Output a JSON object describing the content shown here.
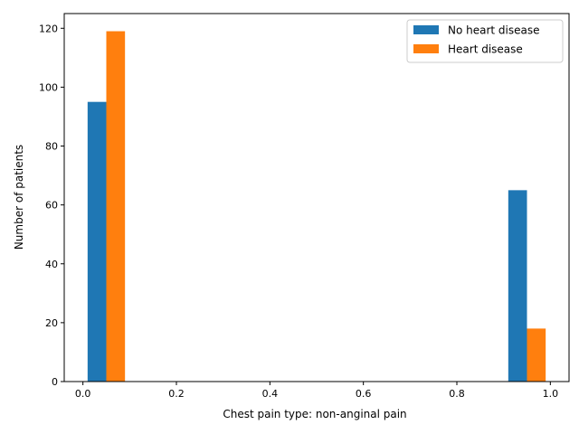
{
  "chart_data": {
    "type": "bar",
    "title": "",
    "xlabel": "Chest pain type: non-anginal pain",
    "ylabel": "Number of patients",
    "xlim": [
      -0.04,
      1.04
    ],
    "ylim": [
      0,
      125
    ],
    "xticks": [
      0.0,
      0.2,
      0.4,
      0.6,
      0.8,
      1.0
    ],
    "xtick_labels": [
      "0.0",
      "0.2",
      "0.4",
      "0.6",
      "0.8",
      "1.0"
    ],
    "yticks": [
      0,
      20,
      40,
      60,
      80,
      100,
      120
    ],
    "ytick_labels": [
      "0",
      "20",
      "40",
      "60",
      "80",
      "100",
      "120"
    ],
    "grid": false,
    "legend_position": "top-right",
    "series": [
      {
        "name": "No heart disease",
        "color": "#1f77b4",
        "bins": [
          {
            "x0": 0.01,
            "x1": 0.05,
            "value": 95
          },
          {
            "x0": 0.91,
            "x1": 0.95,
            "value": 65
          }
        ]
      },
      {
        "name": "Heart disease",
        "color": "#ff7f0e",
        "bins": [
          {
            "x0": 0.05,
            "x1": 0.09,
            "value": 119
          },
          {
            "x0": 0.95,
            "x1": 0.99,
            "value": 18
          }
        ]
      }
    ]
  }
}
